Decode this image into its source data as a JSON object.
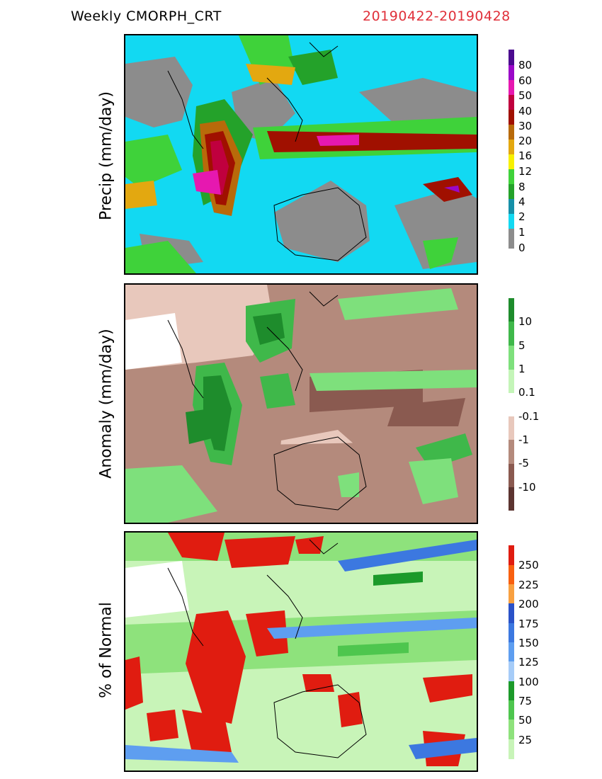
{
  "title": {
    "product": "Weekly  CMORPH_CRT",
    "dates": "20190422-20190428"
  },
  "panels": [
    {
      "label": "Precip  (mm/day)",
      "colorbar_labels": [
        "80",
        "60",
        "50",
        "40",
        "30",
        "20",
        "16",
        "12",
        "8",
        "4",
        "2",
        "1",
        "0"
      ],
      "colors": [
        "#4b0a8f",
        "#9a08c8",
        "#e618b0",
        "#c0003e",
        "#a01000",
        "#b86a0a",
        "#e3a810",
        "#f7f000",
        "#3fd23a",
        "#24a22a",
        "#1690a8",
        "#12d9f2",
        "#8c8c8c"
      ]
    },
    {
      "label": "Anomaly  (mm/day)",
      "colorbar_labels": [
        "10",
        "5",
        "1",
        "0.1",
        "-0.1",
        "-1",
        "-5",
        "-10"
      ],
      "colors": [
        "#1e8c2c",
        "#3fb84a",
        "#7ee07c",
        "#c4f5b8",
        "#ffffff",
        "#e8c8bc",
        "#b48a7c",
        "#8a5a50",
        "#5c3430"
      ]
    },
    {
      "label": "% of Normal",
      "colorbar_labels": [
        "250",
        "225",
        "200",
        "175",
        "150",
        "125",
        "100",
        "75",
        "50",
        "25"
      ],
      "colors": [
        "#e01c10",
        "#f86010",
        "#f8a040",
        "#2a52c8",
        "#3c78e0",
        "#5e9ef0",
        "#a6ccf8",
        "#1c9a2a",
        "#4ec64e",
        "#8ee27c",
        "#c8f4b8"
      ]
    }
  ]
}
